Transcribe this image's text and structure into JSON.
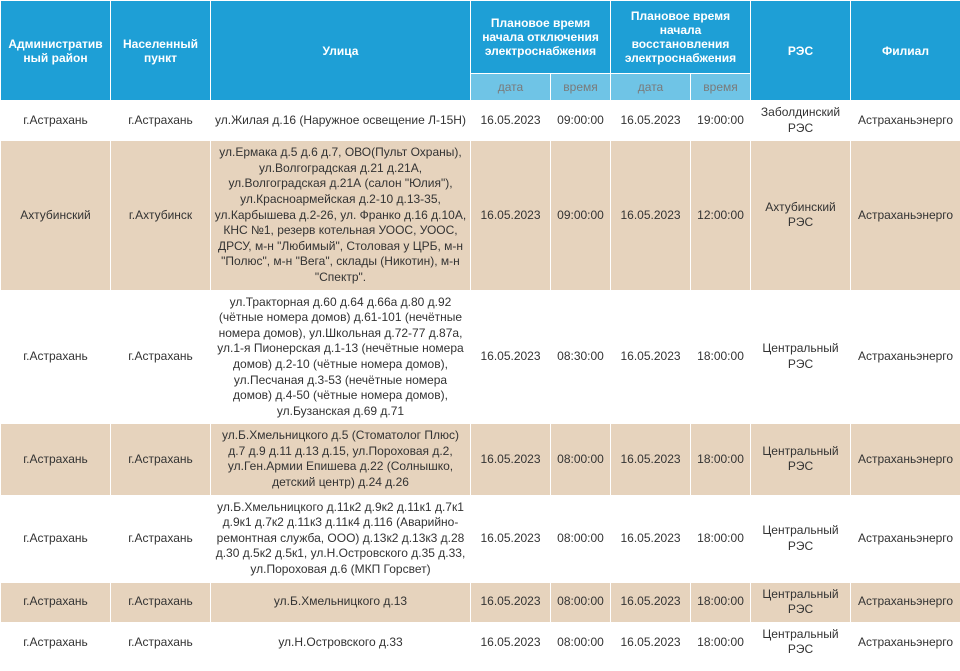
{
  "table": {
    "colors": {
      "header_bg": "#1e9fd6",
      "header_text": "#ffffff",
      "subheader_bg": "#6fc4e6",
      "subheader_text": "#7a7a7a",
      "row_odd_bg": "#ffffff",
      "row_even_bg": "#e6d3bd",
      "cell_text": "#333333",
      "border": "#ffffff"
    },
    "headers": {
      "district": "Административный район",
      "city": "Населенный пункт",
      "street": "Улица",
      "outage_start": "Плановое время начала отключения электроснабжения",
      "restore_start": "Плановое время начала восстановления электроснабжения",
      "res": "РЭС",
      "branch": "Филиал",
      "sub_date": "дата",
      "sub_time": "время"
    },
    "rows": [
      {
        "district": "г.Астрахань",
        "city": "г.Астрахань",
        "street": "ул.Жилая д.16 (Наружное освещение Л-15Н)",
        "out_date": "16.05.2023",
        "out_time": "09:00:00",
        "rest_date": "16.05.2023",
        "rest_time": "19:00:00",
        "res": "Заболдинский РЭС",
        "branch": "Астраханьэнерго"
      },
      {
        "district": "Ахтубинский",
        "city": "г.Ахтубинск",
        "street": "ул.Ермака д.5 д.6 д.7, ОВО(Пульт Охраны), ул.Волгоградская д.21 д.21А, ул.Волгоградская д.21А (салон \"Юлия\"), ул.Красноармейская д.2-10 д.13-35, ул.Карбышева д.2-26, ул. Франко д.16 д.10А, КНС №1, резерв котельная УООС, УООС, ДРСУ, м-н \"Любимый\", Столовая у ЦРБ, м-н \"Полюс\", м-н \"Вега\", склады (Никотин), м-н \"Спектр\".",
        "out_date": "16.05.2023",
        "out_time": "09:00:00",
        "rest_date": "16.05.2023",
        "rest_time": "12:00:00",
        "res": "Ахтубинский РЭС",
        "branch": "Астраханьэнерго"
      },
      {
        "district": "г.Астрахань",
        "city": "г.Астрахань",
        "street": "ул.Тракторная д.60 д.64 д.66а д.80 д.92 (чётные номера домов) д.61-101 (нечётные номера домов), ул.Школьная д.72-77 д.87а, ул.1-я Пионерская д.1-13 (нечётные номера домов) д.2-10 (чётные номера домов), ул.Песчаная д.3-53 (нечётные номера домов) д.4-50 (чётные номера домов), ул.Бузанская д.69 д.71",
        "out_date": "16.05.2023",
        "out_time": "08:30:00",
        "rest_date": "16.05.2023",
        "rest_time": "18:00:00",
        "res": "Центральный РЭС",
        "branch": "Астраханьэнерго"
      },
      {
        "district": "г.Астрахань",
        "city": "г.Астрахань",
        "street": "ул.Б.Хмельницкого д.5 (Стоматолог Плюс) д.7 д.9 д.11 д.13 д.15, ул.Пороховая д.2, ул.Ген.Армии Епишева д.22 (Солнышко, детский центр) д.24 д.26",
        "out_date": "16.05.2023",
        "out_time": "08:00:00",
        "rest_date": "16.05.2023",
        "rest_time": "18:00:00",
        "res": "Центральный РЭС",
        "branch": "Астраханьэнерго"
      },
      {
        "district": "г.Астрахань",
        "city": "г.Астрахань",
        "street": "ул.Б.Хмельницкого д.11к2 д.9к2 д.11к1 д.7к1 д.9к1 д.7к2 д.11к3 д.11к4 д.116 (Аварийно-ремонтная служба, ООО) д.13к2 д.13к3 д.28 д.30 д.5к2 д.5к1, ул.Н.Островского д.35 д.33, ул.Пороховая д.6 (МКП Горсвет)",
        "out_date": "16.05.2023",
        "out_time": "08:00:00",
        "rest_date": "16.05.2023",
        "rest_time": "18:00:00",
        "res": "Центральный РЭС",
        "branch": "Астраханьэнерго"
      },
      {
        "district": "г.Астрахань",
        "city": "г.Астрахань",
        "street": "ул.Б.Хмельницкого д.13",
        "out_date": "16.05.2023",
        "out_time": "08:00:00",
        "rest_date": "16.05.2023",
        "rest_time": "18:00:00",
        "res": "Центральный РЭС",
        "branch": "Астраханьэнерго"
      },
      {
        "district": "г.Астрахань",
        "city": "г.Астрахань",
        "street": "ул.Н.Островского д.33",
        "out_date": "16.05.2023",
        "out_time": "08:00:00",
        "rest_date": "16.05.2023",
        "rest_time": "18:00:00",
        "res": "Центральный РЭС",
        "branch": "Астраханьэнерго"
      }
    ]
  }
}
